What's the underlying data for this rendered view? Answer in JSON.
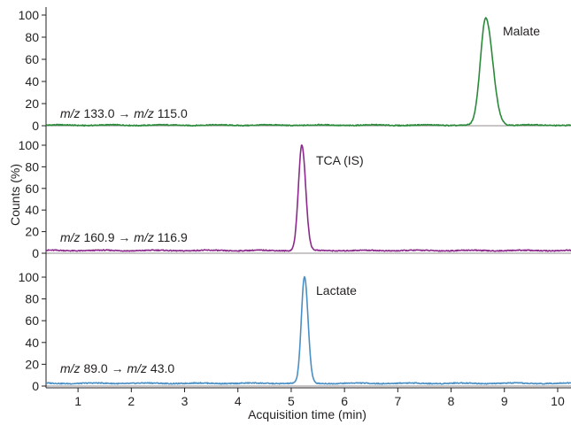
{
  "chart_data": {
    "type": "line",
    "xlabel": "Acquisition time (min)",
    "ylabel": "Counts (%)",
    "xlim": [
      0.4,
      10.25
    ],
    "x_ticks": [
      1,
      2,
      3,
      4,
      5,
      6,
      7,
      8,
      9,
      10
    ],
    "y_ticks": [
      0,
      20,
      40,
      60,
      80,
      100
    ],
    "grid": false,
    "panels": [
      {
        "name": "Malate",
        "annotation": "Malate",
        "transition": {
          "mz_label_1": "m/z",
          "precursor": "133.0",
          "arrow": "→",
          "mz_label_2": "m/z",
          "product": "115.0"
        },
        "color": "#2a8a3a",
        "baseline": 0.5,
        "peak": {
          "x": 8.65,
          "y": 97,
          "width": 0.1,
          "tail": 0.03
        },
        "ylim": [
          0,
          100
        ]
      },
      {
        "name": "TCA (IS)",
        "annotation": "TCA (IS)",
        "transition": {
          "mz_label_1": "m/z",
          "precursor": "160.9",
          "arrow": "→",
          "mz_label_2": "m/z",
          "product": "116.9"
        },
        "color": "#8b2a8b",
        "baseline": 2.5,
        "peak": {
          "x": 5.2,
          "y": 100,
          "width": 0.065,
          "tail": 0.01
        },
        "ylim": [
          0,
          100
        ]
      },
      {
        "name": "Lactate",
        "annotation": "Lactate",
        "transition": {
          "mz_label_1": "m/z",
          "precursor": "89.0",
          "arrow": "→",
          "mz_label_2": "m/z",
          "product": "43.0"
        },
        "color": "#4a8fc4",
        "baseline": 2.5,
        "peak": {
          "x": 5.25,
          "y": 100,
          "width": 0.06,
          "tail": 0.01
        },
        "ylim": [
          0,
          100
        ]
      }
    ]
  }
}
